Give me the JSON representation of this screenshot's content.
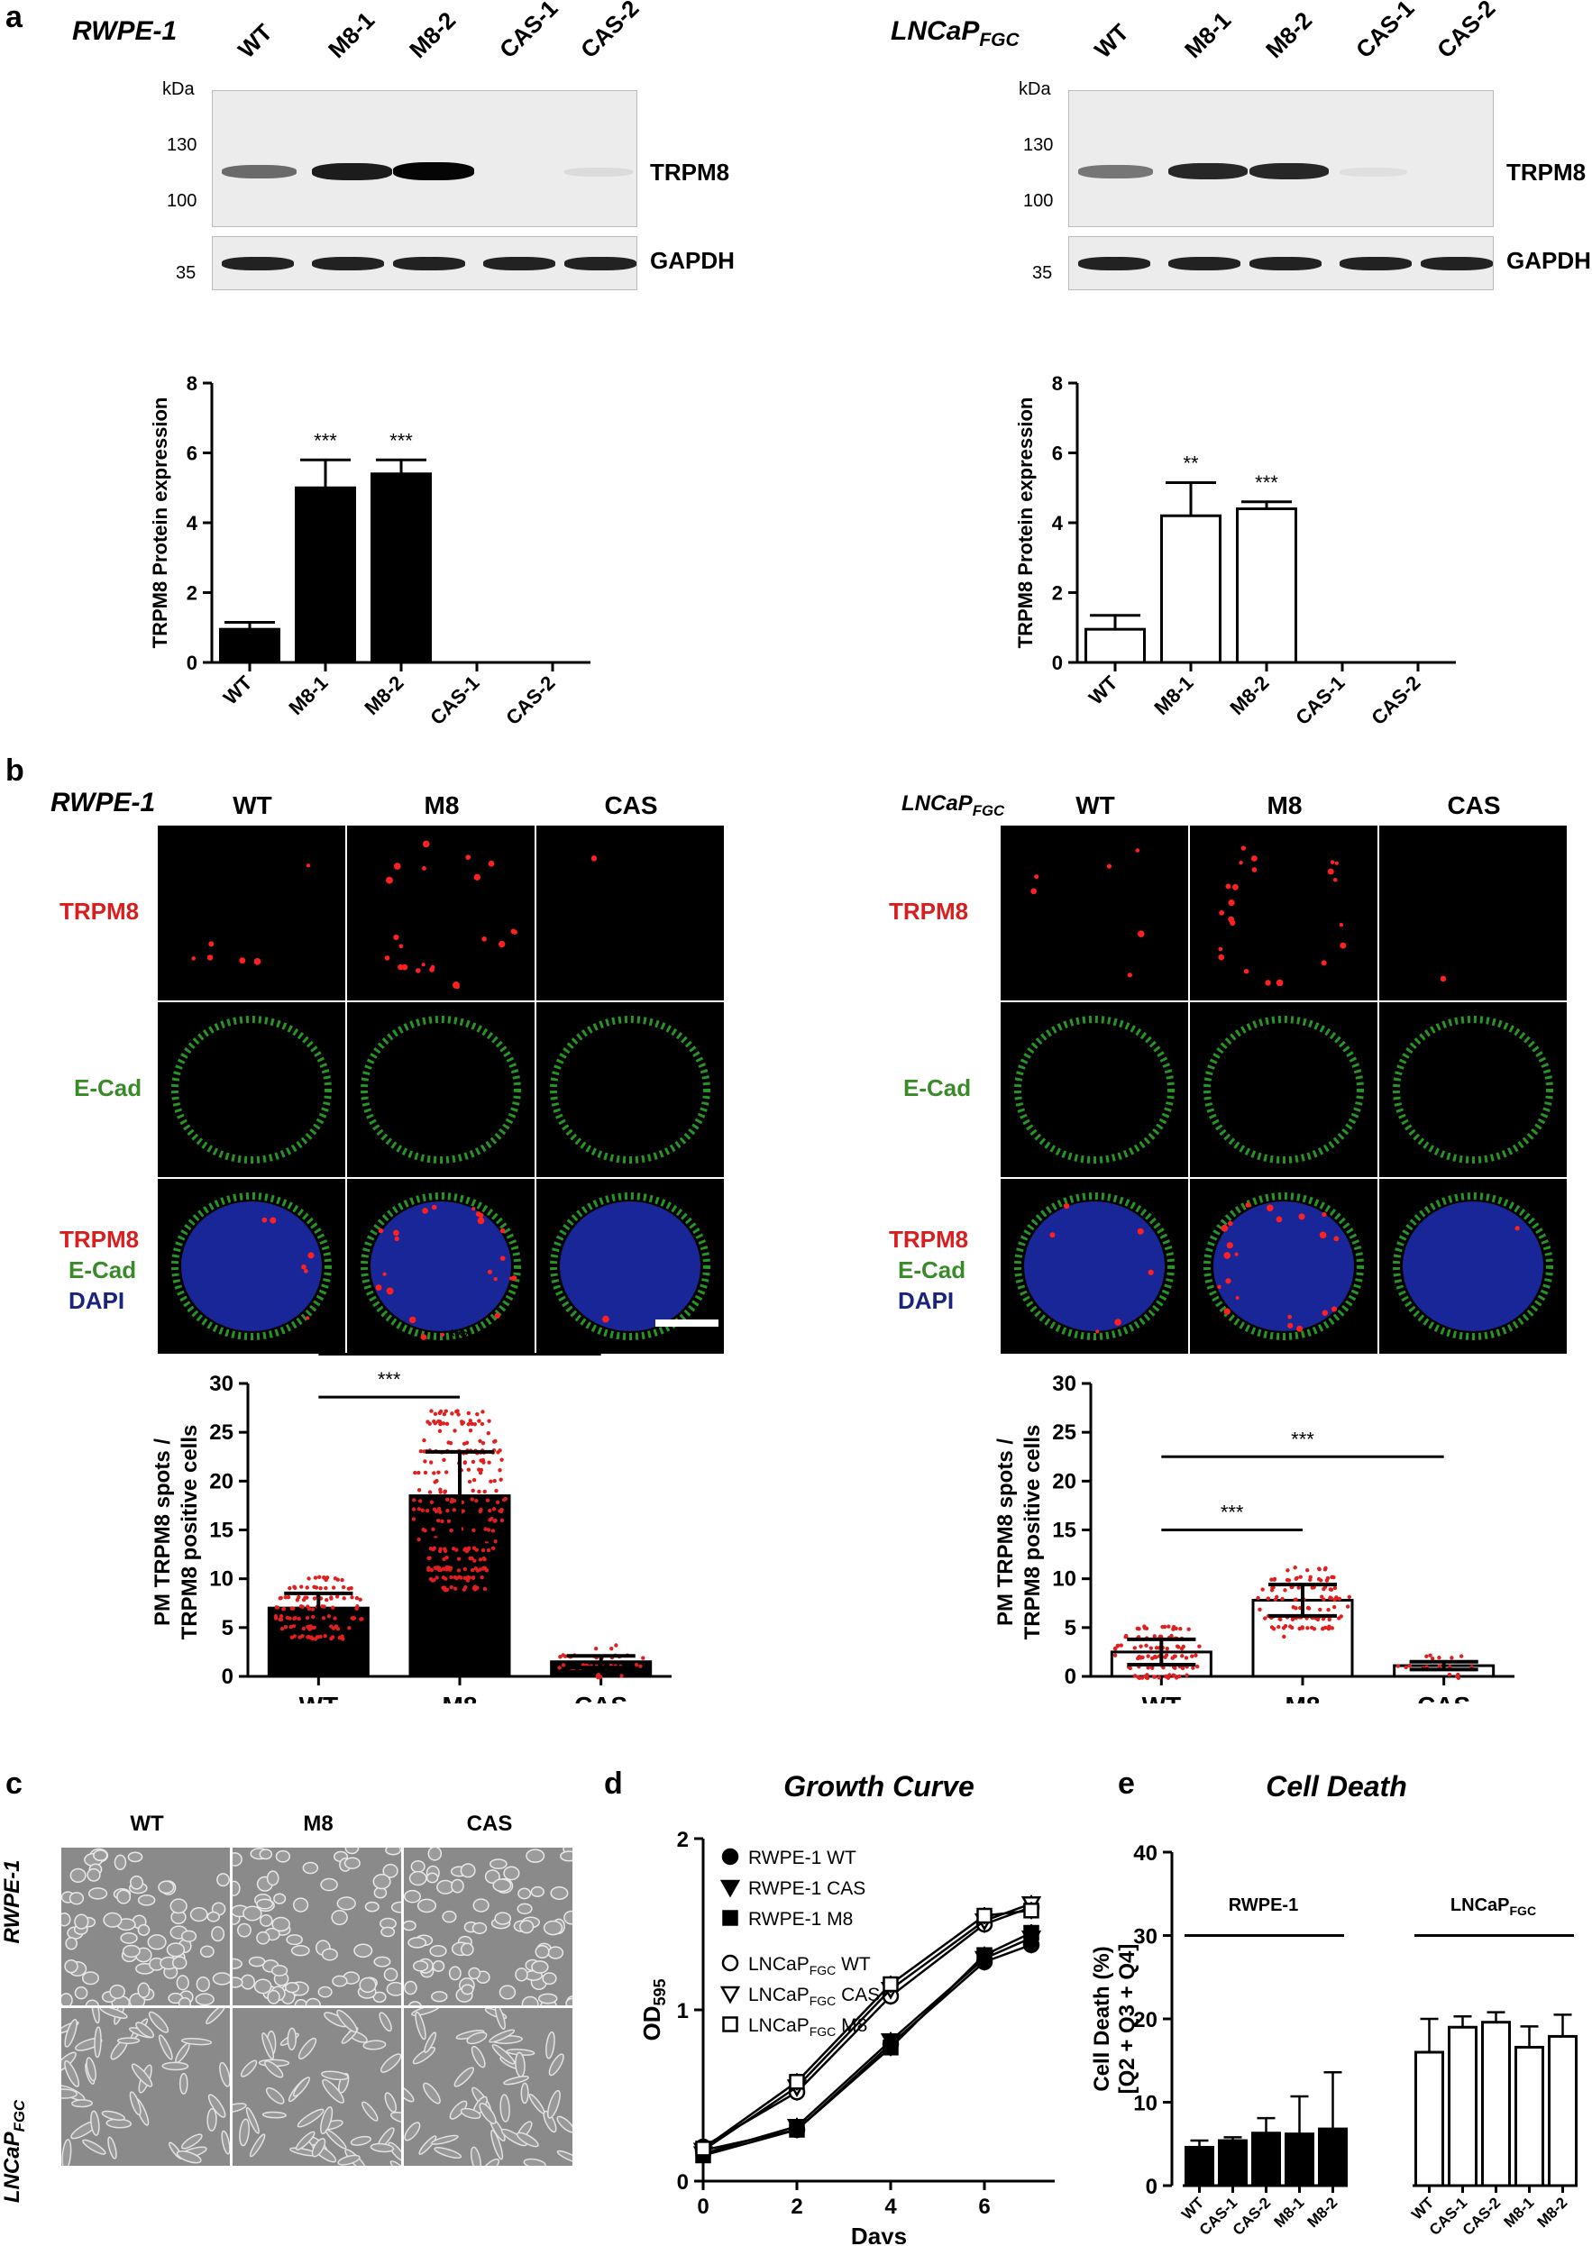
{
  "panels": {
    "a": "a",
    "b": "b",
    "c": "c",
    "d": "d",
    "e": "e"
  },
  "cells": {
    "rwpe": "RWPE-1",
    "lncap": "LNCaP",
    "lncap_sub": "FGC"
  },
  "blot": {
    "kda": "kDa",
    "markers": [
      "130",
      "100",
      "35"
    ],
    "lanes": [
      "WT",
      "M8-1",
      "M8-2",
      "CAS-1",
      "CAS-2"
    ],
    "protein1": "TRPM8",
    "protein2": "GAPDH",
    "rwpe_trpm8_intensity": [
      0.55,
      0.9,
      1.0,
      0.0,
      0.05
    ],
    "lncap_trpm8_intensity": [
      0.5,
      0.85,
      0.85,
      0.03,
      0.0
    ]
  },
  "conditions": [
    "WT",
    "M8",
    "CAS"
  ],
  "stain": {
    "trpm8": "TRPM8",
    "ecad": "E-Cad",
    "dapi": "DAPI",
    "colors": {
      "trpm8": "#d81e1e",
      "ecad": "#3a8a2a",
      "dapi": "#1a237e"
    }
  },
  "phase_rows": {
    "r1": "RWPE-1",
    "r2": "LNCaP",
    "r2_sub": "FGC"
  },
  "chart_data": [
    {
      "type": "bar",
      "id": "a-left",
      "categories": [
        "WT",
        "M8-1",
        "M8-2",
        "CAS-1",
        "CAS-2"
      ],
      "values": [
        0.95,
        5.0,
        5.4,
        0,
        0
      ],
      "errors": [
        0.2,
        0.8,
        0.4,
        0,
        0
      ],
      "significance": [
        "",
        "***",
        "***",
        "",
        ""
      ],
      "ylabel": "TRPM8 Protein expression",
      "ylim": [
        0,
        8
      ],
      "yticks": [
        0,
        2,
        4,
        6,
        8
      ],
      "fill": "#000000"
    },
    {
      "type": "bar",
      "id": "a-right",
      "categories": [
        "WT",
        "M8-1",
        "M8-2",
        "CAS-1",
        "CAS-2"
      ],
      "values": [
        0.95,
        4.2,
        4.4,
        0,
        0
      ],
      "errors": [
        0.4,
        0.95,
        0.2,
        0,
        0
      ],
      "significance": [
        "",
        "**",
        "***",
        "",
        ""
      ],
      "ylabel": "TRPM8 Protein expression",
      "ylim": [
        0,
        8
      ],
      "yticks": [
        0,
        2,
        4,
        6,
        8
      ],
      "fill": "#ffffff"
    },
    {
      "type": "bar",
      "id": "b-left",
      "categories": [
        "WT",
        "M8",
        "CAS"
      ],
      "values": [
        7,
        18.5,
        1.5
      ],
      "errors": [
        1.5,
        4.5,
        0.6
      ],
      "ylabel_lines": [
        "PM TRPM8 spots /",
        "TRPM8 positive cells"
      ],
      "ylim": [
        0,
        30
      ],
      "yticks": [
        0,
        5,
        10,
        15,
        20,
        25,
        30
      ],
      "fill": "#000000",
      "brackets": [
        {
          "from": 0,
          "to": 1,
          "label": "***"
        },
        {
          "from": 0,
          "to": 2,
          "label": "***"
        }
      ]
    },
    {
      "type": "bar",
      "id": "b-right",
      "categories": [
        "WT",
        "M8",
        "CAS"
      ],
      "values": [
        2.5,
        7.8,
        1.1
      ],
      "errors": [
        1.3,
        1.6,
        0.4
      ],
      "ylabel_lines": [
        "PM TRPM8 spots /",
        "TRPM8 positive cells"
      ],
      "ylim": [
        0,
        30
      ],
      "yticks": [
        0,
        5,
        10,
        15,
        20,
        25,
        30
      ],
      "fill": "#ffffff",
      "brackets": [
        {
          "from": 0,
          "to": 1,
          "label": "***"
        },
        {
          "from": 0,
          "to": 2,
          "label": "***"
        }
      ]
    },
    {
      "type": "line",
      "id": "d",
      "title": "Growth Curve",
      "xlabel": "Days",
      "ylabel": "OD",
      "ylabel_sub": "595",
      "xlim": [
        0,
        7.5
      ],
      "ylim": [
        0,
        2
      ],
      "xticks": [
        0,
        2,
        4,
        6
      ],
      "yticks": [
        0,
        1,
        2
      ],
      "x": [
        0,
        2,
        4,
        6,
        7
      ],
      "series": [
        {
          "name": "RWPE-1 WT",
          "marker": "circle",
          "filled": true,
          "values": [
            0.18,
            0.3,
            0.8,
            1.28,
            1.38
          ]
        },
        {
          "name": "RWPE-1 CAS",
          "marker": "triangle-down",
          "filled": true,
          "values": [
            0.16,
            0.32,
            0.82,
            1.3,
            1.42
          ]
        },
        {
          "name": "RWPE-1 M8",
          "marker": "square",
          "filled": true,
          "values": [
            0.15,
            0.3,
            0.78,
            1.32,
            1.45
          ]
        },
        {
          "name": "LNCaP",
          "name_sub": "FGC",
          "name_end": " WT",
          "marker": "circle",
          "filled": false,
          "values": [
            0.2,
            0.52,
            1.08,
            1.5,
            1.6
          ]
        },
        {
          "name": "LNCaP",
          "name_sub": "FGC",
          "name_end": " CAS",
          "marker": "triangle-down",
          "filled": false,
          "values": [
            0.18,
            0.55,
            1.12,
            1.52,
            1.62
          ]
        },
        {
          "name": "LNCaP",
          "name_sub": "FGC",
          "name_end": " M8",
          "marker": "square",
          "filled": false,
          "values": [
            0.19,
            0.58,
            1.15,
            1.55,
            1.58
          ]
        }
      ]
    },
    {
      "type": "bar",
      "id": "e",
      "title": "Cell Death",
      "ylabel_lines": [
        "Cell Death (%)",
        "[Q2 + Q3 + Q4]"
      ],
      "ylim": [
        0,
        40
      ],
      "yticks": [
        0,
        10,
        20,
        30,
        40
      ],
      "groups": [
        {
          "name": "RWPE-1",
          "fill": "#000000",
          "categories": [
            "WT",
            "CAS-1",
            "CAS-2",
            "M8-1",
            "M8-2"
          ],
          "values": [
            4.6,
            5.4,
            6.3,
            6.2,
            6.8
          ],
          "errors": [
            0.8,
            0.4,
            1.8,
            4.5,
            6.8
          ]
        },
        {
          "name": "LNCaP",
          "name_sub": "FGC",
          "fill": "#ffffff",
          "categories": [
            "WT",
            "CAS-1",
            "CAS-2",
            "M8-1",
            "M8-2"
          ],
          "values": [
            16,
            19,
            19.6,
            16.6,
            17.9
          ],
          "errors": [
            4,
            1.3,
            1.2,
            2.5,
            2.6
          ]
        }
      ]
    }
  ]
}
